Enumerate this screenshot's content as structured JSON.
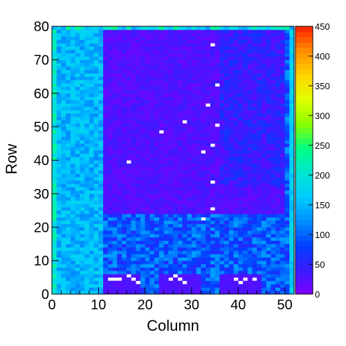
{
  "chart_data": {
    "type": "heatmap",
    "title": "",
    "xlabel": "Column",
    "ylabel": "Row",
    "xlim": [
      0,
      52
    ],
    "ylim": [
      0,
      80
    ],
    "x_ticks": [
      0,
      10,
      20,
      30,
      40,
      50
    ],
    "y_ticks": [
      0,
      10,
      20,
      30,
      40,
      50,
      60,
      70,
      80
    ],
    "colorbar": {
      "zlim": [
        0,
        450
      ],
      "ticks": [
        0,
        50,
        100,
        150,
        200,
        250,
        300,
        350,
        400,
        450
      ],
      "palette": [
        "#7f00ff",
        "#3a1bff",
        "#0040ff",
        "#0090ff",
        "#00ccff",
        "#00e6d2",
        "#00ff80",
        "#8cff00",
        "#e0ff00",
        "#ffd400",
        "#ff8c00",
        "#ff2000"
      ]
    },
    "grid": false,
    "column_count": 52,
    "row_count": 80,
    "regions": {
      "left_band_columns": [
        0,
        11
      ],
      "left_band_value": 150,
      "upper_block": {
        "columns": [
          11,
          50
        ],
        "rows": [
          24,
          80
        ],
        "value": 20
      },
      "right_upper_block": {
        "columns": [
          36,
          50
        ],
        "rows": [
          32,
          80
        ],
        "value": 45
      },
      "lower_mid_value": 95,
      "bottom_rows": [
        0,
        6
      ],
      "bottom_cluster_value": 20
    },
    "empty_cells": [
      [
        34,
        74
      ],
      [
        35,
        62
      ],
      [
        33,
        56
      ],
      [
        28,
        51
      ],
      [
        35,
        50
      ],
      [
        23,
        48
      ],
      [
        34,
        44
      ],
      [
        32,
        42
      ],
      [
        16,
        39
      ],
      [
        34,
        33
      ],
      [
        34,
        25
      ],
      [
        32,
        22
      ],
      [
        12,
        4
      ],
      [
        13,
        4
      ],
      [
        14,
        4
      ],
      [
        16,
        5
      ],
      [
        17,
        4
      ],
      [
        18,
        3
      ],
      [
        25,
        4
      ],
      [
        26,
        5
      ],
      [
        27,
        4
      ],
      [
        28,
        3
      ],
      [
        39,
        4
      ],
      [
        40,
        3
      ],
      [
        41,
        4
      ],
      [
        43,
        4
      ]
    ]
  }
}
